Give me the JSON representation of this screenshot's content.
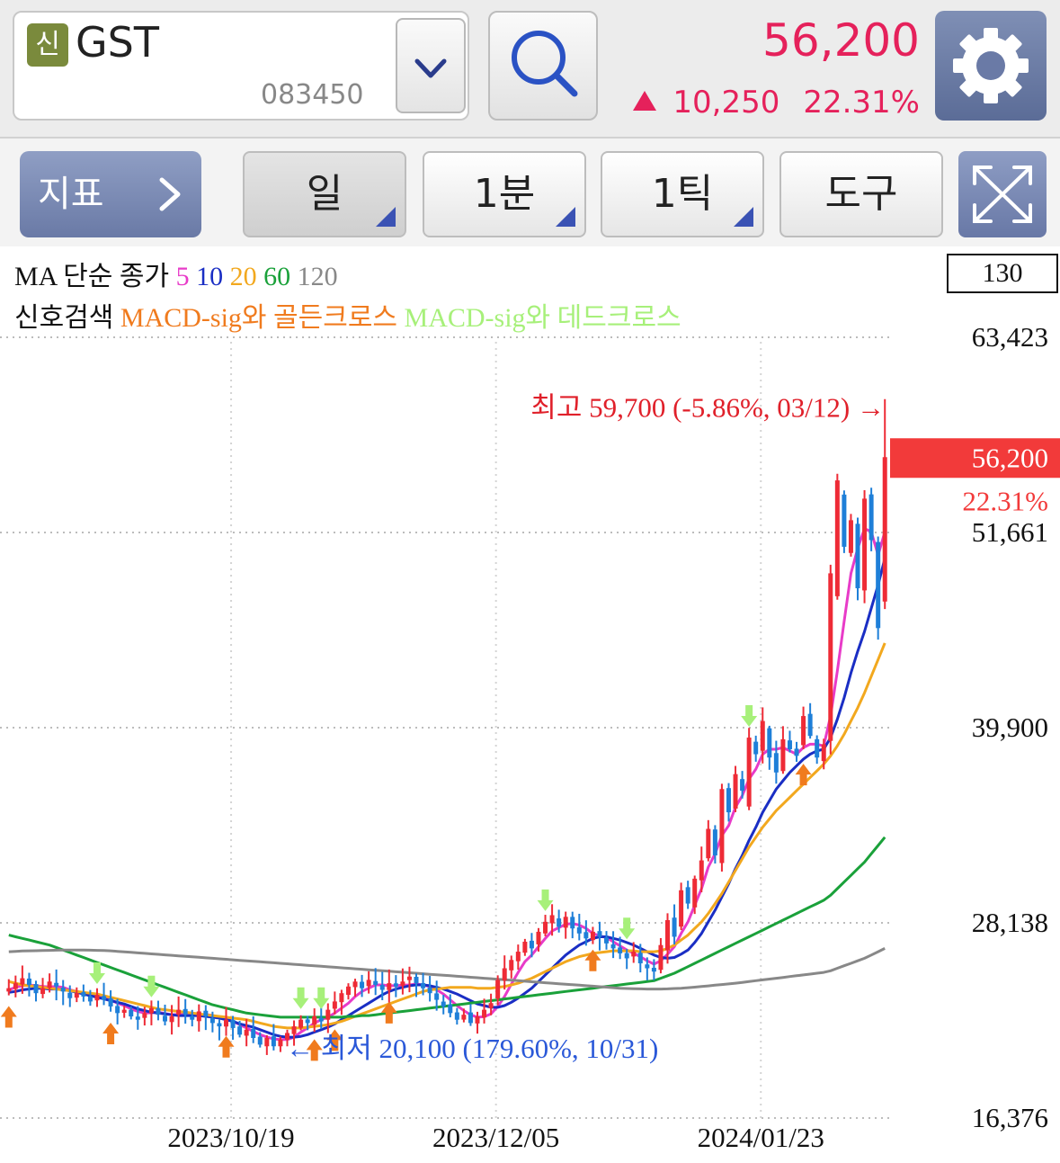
{
  "header": {
    "market_badge": "신",
    "stock_name": "GST",
    "stock_code": "083450",
    "price": "56,200",
    "change": "10,250",
    "change_pct": "22.31%"
  },
  "toolbar": {
    "indicator_label": "지표",
    "period_label": "일",
    "minute_label": "1분",
    "tick_label": "1틱",
    "tools_label": "도구"
  },
  "legend": {
    "ma_title": "MA 단순 종가",
    "ma_periods": [
      {
        "label": "5",
        "color": "#e83bc8"
      },
      {
        "label": "10",
        "color": "#1a2ec4"
      },
      {
        "label": "20",
        "color": "#f2a81e"
      },
      {
        "label": "60",
        "color": "#1aa13a"
      },
      {
        "label": "120",
        "color": "#888888"
      }
    ],
    "signal_title": "신호검색",
    "golden_cross": "MACD-sig와 골든크로스",
    "dead_cross": "MACD-sig와 데드크로스",
    "golden_color": "#f07b1e",
    "dead_color": "#a7f07a",
    "count_box": "130"
  },
  "chart_data": {
    "type": "candlestick",
    "y_ticks": [
      "63,423",
      "51,661",
      "39,900",
      "28,138",
      "16,376"
    ],
    "y_range": [
      16376,
      63423
    ],
    "x_ticks": [
      "2023/10/19",
      "2023/12/05",
      "2024/01/23"
    ],
    "current_price_label": "56,200",
    "current_pct_label": "22.31%",
    "high_annotation": "최고 59,700 (-5.86%, 03/12) →",
    "low_annotation": "← 최저 20,100 (179.60%, 10/31)",
    "high_value": 59700,
    "low_value": 20100,
    "current_value": 56200,
    "up_color": "#ee2b36",
    "down_color": "#1e7fd8",
    "closes": [
      24200,
      24500,
      24800,
      24400,
      23900,
      24200,
      24600,
      24300,
      24000,
      23600,
      23900,
      23700,
      23400,
      23800,
      23500,
      23100,
      22700,
      22900,
      22500,
      22300,
      22700,
      23000,
      22600,
      22200,
      22500,
      22900,
      22600,
      22300,
      22800,
      22500,
      22100,
      21900,
      22300,
      21800,
      21400,
      21700,
      21200,
      20800,
      21200,
      20700,
      21100,
      21500,
      21900,
      22300,
      22100,
      22500,
      22200,
      22900,
      23400,
      23900,
      24300,
      24600,
      24200,
      24700,
      24400,
      24100,
      24500,
      24300,
      24600,
      24900,
      24500,
      24200,
      23900,
      23500,
      23100,
      22700,
      22300,
      22600,
      22100,
      22500,
      22900,
      23300,
      24700,
      25400,
      25900,
      26400,
      27000,
      26600,
      27600,
      28200,
      28600,
      27900,
      28500,
      27800,
      27500,
      27200,
      27600,
      27300,
      26900,
      26600,
      26300,
      26000,
      26400,
      25700,
      25400,
      25200,
      26800,
      28300,
      27300,
      30100,
      29300,
      30800,
      31900,
      33800,
      32200,
      36200,
      34800,
      37100,
      36100,
      39300,
      38300,
      40300,
      38100,
      37200,
      39200,
      38600,
      38200,
      40600,
      39400,
      38100,
      38900,
      49200,
      54800,
      50800,
      52400,
      48300,
      53700,
      51200,
      45900,
      56200
    ],
    "series": [
      {
        "name": "5",
        "values": [
          24100,
          24250,
          24350,
          24400,
          24350,
          24300,
          24280,
          24300,
          24250,
          24100,
          24000,
          23900,
          23750,
          23700,
          23600,
          23500,
          23300,
          23150,
          22950,
          22800,
          22700,
          22720,
          22750,
          22680,
          22600,
          22620,
          22640,
          22620,
          22600,
          22620,
          22560,
          22460,
          22360,
          22200,
          22000,
          21800,
          21600,
          21400,
          21260,
          21140,
          21100,
          21100,
          21250,
          21550,
          21800,
          22100,
          22300,
          22450,
          22700,
          23000,
          23300,
          23700,
          24000,
          24200,
          24400,
          24400,
          24350,
          24350,
          24380,
          24400,
          24450,
          24400,
          24300,
          24100,
          23850,
          23500,
          23150,
          22850,
          22600,
          22450,
          22480,
          22650,
          23100,
          23700,
          24450,
          25150,
          25800,
          26200,
          26700,
          27200,
          27650,
          27850,
          28050,
          28100,
          28000,
          27800,
          27500,
          27350,
          27250,
          27000,
          26750,
          26500,
          26300,
          26100,
          25850,
          25650,
          25850,
          26250,
          26700,
          27500,
          28200,
          29200,
          30200,
          31500,
          32300,
          33400,
          34000,
          35100,
          35800,
          36800,
          37400,
          38300,
          38600,
          38600,
          38700,
          38500,
          38300,
          38700,
          38900,
          38900,
          38800,
          40600,
          43300,
          46300,
          49200,
          50700,
          51900,
          51700,
          50300,
          51700
        ]
      },
      {
        "name": "10",
        "values": [
          23950,
          24000,
          24100,
          24150,
          24200,
          24200,
          24150,
          24150,
          24100,
          24050,
          23950,
          23850,
          23750,
          23650,
          23550,
          23450,
          23350,
          23250,
          23100,
          22950,
          22850,
          22750,
          22700,
          22650,
          22600,
          22550,
          22550,
          22550,
          22550,
          22500,
          22450,
          22400,
          22300,
          22200,
          22050,
          21950,
          21850,
          21700,
          21550,
          21400,
          21300,
          21250,
          21250,
          21300,
          21400,
          21550,
          21700,
          21850,
          22050,
          22300,
          22550,
          22800,
          23050,
          23300,
          23550,
          23800,
          24000,
          24150,
          24250,
          24350,
          24400,
          24400,
          24350,
          24250,
          24150,
          24000,
          23850,
          23650,
          23450,
          23250,
          23150,
          23050,
          23050,
          23150,
          23350,
          23600,
          23900,
          24200,
          24600,
          25000,
          25400,
          25800,
          26200,
          26500,
          26800,
          27000,
          27200,
          27300,
          27300,
          27200,
          27100,
          26950,
          26800,
          26600,
          26400,
          26200,
          26050,
          26000,
          26050,
          26250,
          26500,
          26950,
          27500,
          28200,
          28900,
          29700,
          30500,
          31400,
          32200,
          33100,
          33900,
          34800,
          35500,
          36200,
          36700,
          37200,
          37600,
          38000,
          38300,
          38500,
          38600,
          39300,
          40400,
          41700,
          43200,
          44500,
          45700,
          47100,
          48500,
          50100
        ]
      },
      {
        "name": "20",
        "values": [
          24600,
          24500,
          24400,
          24350,
          24300,
          24250,
          24200,
          24150,
          24100,
          24050,
          24000,
          23950,
          23900,
          23850,
          23750,
          23650,
          23550,
          23450,
          23350,
          23250,
          23150,
          23050,
          22950,
          22900,
          22850,
          22800,
          22750,
          22700,
          22650,
          22600,
          22550,
          22500,
          22450,
          22400,
          22350,
          22300,
          22200,
          22100,
          22000,
          21900,
          21850,
          21800,
          21800,
          21800,
          21850,
          21900,
          21950,
          22000,
          22100,
          22200,
          22350,
          22500,
          22650,
          22800,
          22950,
          23100,
          23250,
          23400,
          23550,
          23700,
          23850,
          24000,
          24100,
          24150,
          24200,
          24250,
          24250,
          24250,
          24250,
          24200,
          24200,
          24200,
          24250,
          24300,
          24400,
          24500,
          24650,
          24800,
          25000,
          25200,
          25400,
          25600,
          25800,
          25950,
          26100,
          26200,
          26300,
          26350,
          26400,
          26450,
          26450,
          26450,
          26450,
          26400,
          26400,
          26400,
          26450,
          26600,
          26800,
          27100,
          27400,
          27800,
          28200,
          28700,
          29300,
          29900,
          30600,
          31300,
          32000,
          32700,
          33300,
          33900,
          34400,
          34900,
          35300,
          35700,
          36100,
          36500,
          36900,
          37300,
          37700,
          38200,
          38800,
          39500,
          40300,
          41100,
          42000,
          43000,
          44000,
          45000
        ]
      },
      {
        "name": "60",
        "values": [
          27400,
          27300,
          27200,
          27100,
          27000,
          26900,
          26800,
          26650,
          26500,
          26350,
          26200,
          26050,
          25900,
          25750,
          25600,
          25450,
          25300,
          25150,
          25000,
          24850,
          24700,
          24550,
          24400,
          24250,
          24100,
          23950,
          23800,
          23650,
          23500,
          23350,
          23200,
          23100,
          23000,
          22900,
          22800,
          22700,
          22650,
          22600,
          22550,
          22500,
          22450,
          22450,
          22450,
          22450,
          22450,
          22450,
          22450,
          22450,
          22450,
          22450,
          22500,
          22500,
          22550,
          22550,
          22600,
          22650,
          22700,
          22750,
          22800,
          22850,
          22900,
          22950,
          23000,
          23050,
          23100,
          23150,
          23200,
          23250,
          23300,
          23350,
          23400,
          23450,
          23500,
          23550,
          23600,
          23650,
          23700,
          23750,
          23800,
          23850,
          23900,
          23950,
          24000,
          24050,
          24100,
          24150,
          24200,
          24250,
          24300,
          24350,
          24400,
          24450,
          24500,
          24550,
          24600,
          24650,
          24800,
          24950,
          25100,
          25300,
          25500,
          25700,
          25900,
          26100,
          26300,
          26500,
          26700,
          26900,
          27100,
          27300,
          27500,
          27700,
          27900,
          28100,
          28300,
          28500,
          28700,
          28900,
          29100,
          29300,
          29500,
          29800,
          30200,
          30600,
          31000,
          31400,
          31800,
          32300,
          32800,
          33300
        ]
      },
      {
        "name": "120",
        "values": [
          26400,
          26420,
          26440,
          26450,
          26460,
          26470,
          26480,
          26490,
          26500,
          26500,
          26500,
          26500,
          26490,
          26480,
          26470,
          26450,
          26420,
          26390,
          26360,
          26330,
          26300,
          26270,
          26240,
          26210,
          26180,
          26150,
          26120,
          26090,
          26060,
          26030,
          26000,
          25970,
          25940,
          25910,
          25880,
          25850,
          25820,
          25790,
          25760,
          25730,
          25700,
          25670,
          25640,
          25610,
          25580,
          25550,
          25520,
          25490,
          25460,
          25430,
          25400,
          25370,
          25340,
          25310,
          25280,
          25250,
          25220,
          25190,
          25160,
          25130,
          25100,
          25070,
          25040,
          25010,
          24980,
          24950,
          24920,
          24890,
          24860,
          24830,
          24800,
          24770,
          24740,
          24710,
          24680,
          24650,
          24620,
          24590,
          24560,
          24530,
          24500,
          24470,
          24440,
          24410,
          24380,
          24350,
          24320,
          24290,
          24260,
          24230,
          24200,
          24180,
          24170,
          24160,
          24150,
          24150,
          24150,
          24160,
          24180,
          24200,
          24230,
          24260,
          24300,
          24340,
          24380,
          24420,
          24460,
          24500,
          24550,
          24600,
          24650,
          24700,
          24750,
          24800,
          24850,
          24900,
          24950,
          25000,
          25050,
          25100,
          25150,
          25250,
          25400,
          25550,
          25700,
          25850,
          26000,
          26200,
          26400,
          26600
        ]
      }
    ],
    "golden_cross_idx": [
      0,
      15,
      32,
      45,
      48,
      56,
      86,
      117
    ],
    "dead_cross_idx": [
      13,
      21,
      43,
      46,
      79,
      91,
      109
    ]
  }
}
